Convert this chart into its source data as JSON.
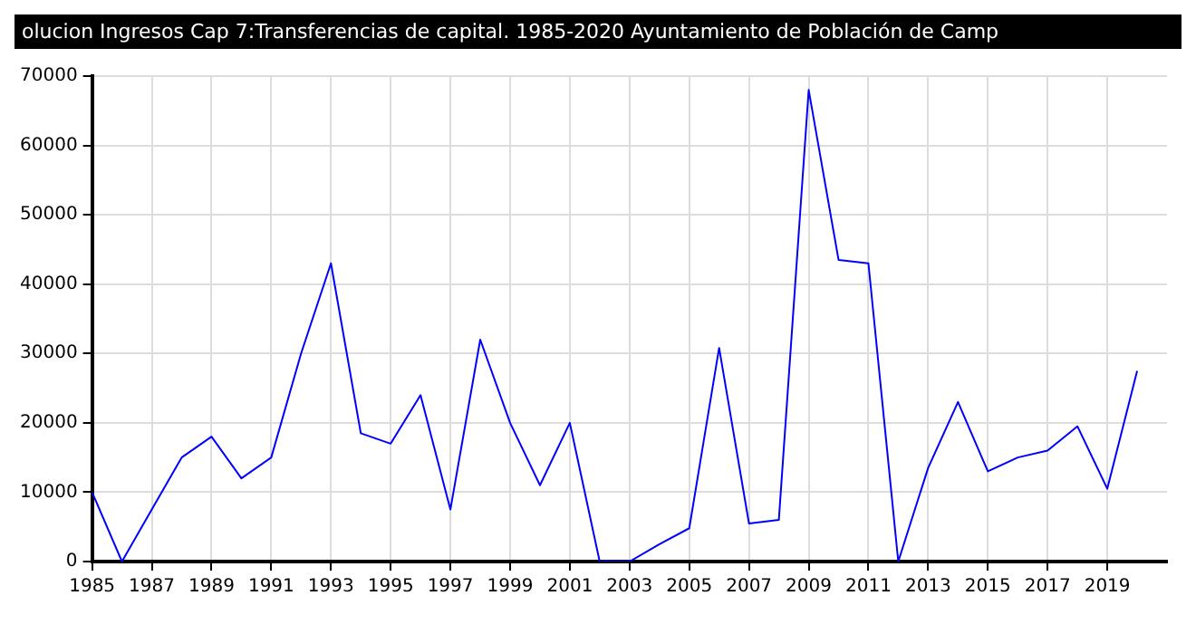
{
  "chart_data": {
    "type": "line",
    "title": "olucion Ingresos Cap 7:Transferencias de capital. 1985-2020 Ayuntamiento de Población de Camp",
    "x": [
      1985,
      1986,
      1987,
      1988,
      1989,
      1990,
      1991,
      1992,
      1993,
      1994,
      1995,
      1996,
      1997,
      1998,
      1999,
      2000,
      2001,
      2002,
      2003,
      2004,
      2005,
      2006,
      2007,
      2008,
      2009,
      2010,
      2011,
      2012,
      2013,
      2014,
      2015,
      2016,
      2017,
      2018,
      2019,
      2020
    ],
    "series": [
      {
        "color": "#0000ff",
        "values": [
          10000,
          0,
          7500,
          15000,
          18000,
          12000,
          15000,
          30000,
          43000,
          18500,
          17000,
          24000,
          7500,
          32000,
          20000,
          11000,
          20000,
          0,
          0,
          2500,
          4800,
          30800,
          5500,
          6000,
          68000,
          43500,
          43000,
          0,
          13500,
          23000,
          13000,
          15000,
          16000,
          19500,
          10500,
          27500
        ]
      }
    ],
    "xlim": [
      1985,
      2021
    ],
    "xticks": [
      1985,
      1987,
      1989,
      1991,
      1993,
      1995,
      1997,
      1999,
      2001,
      2003,
      2005,
      2007,
      2009,
      2011,
      2013,
      2015,
      2017,
      2019
    ],
    "ylim": [
      0,
      70000
    ],
    "yticks": [
      0,
      10000,
      20000,
      30000,
      40000,
      50000,
      60000,
      70000
    ],
    "grid": true,
    "marker": "none",
    "line_style": "solid"
  }
}
